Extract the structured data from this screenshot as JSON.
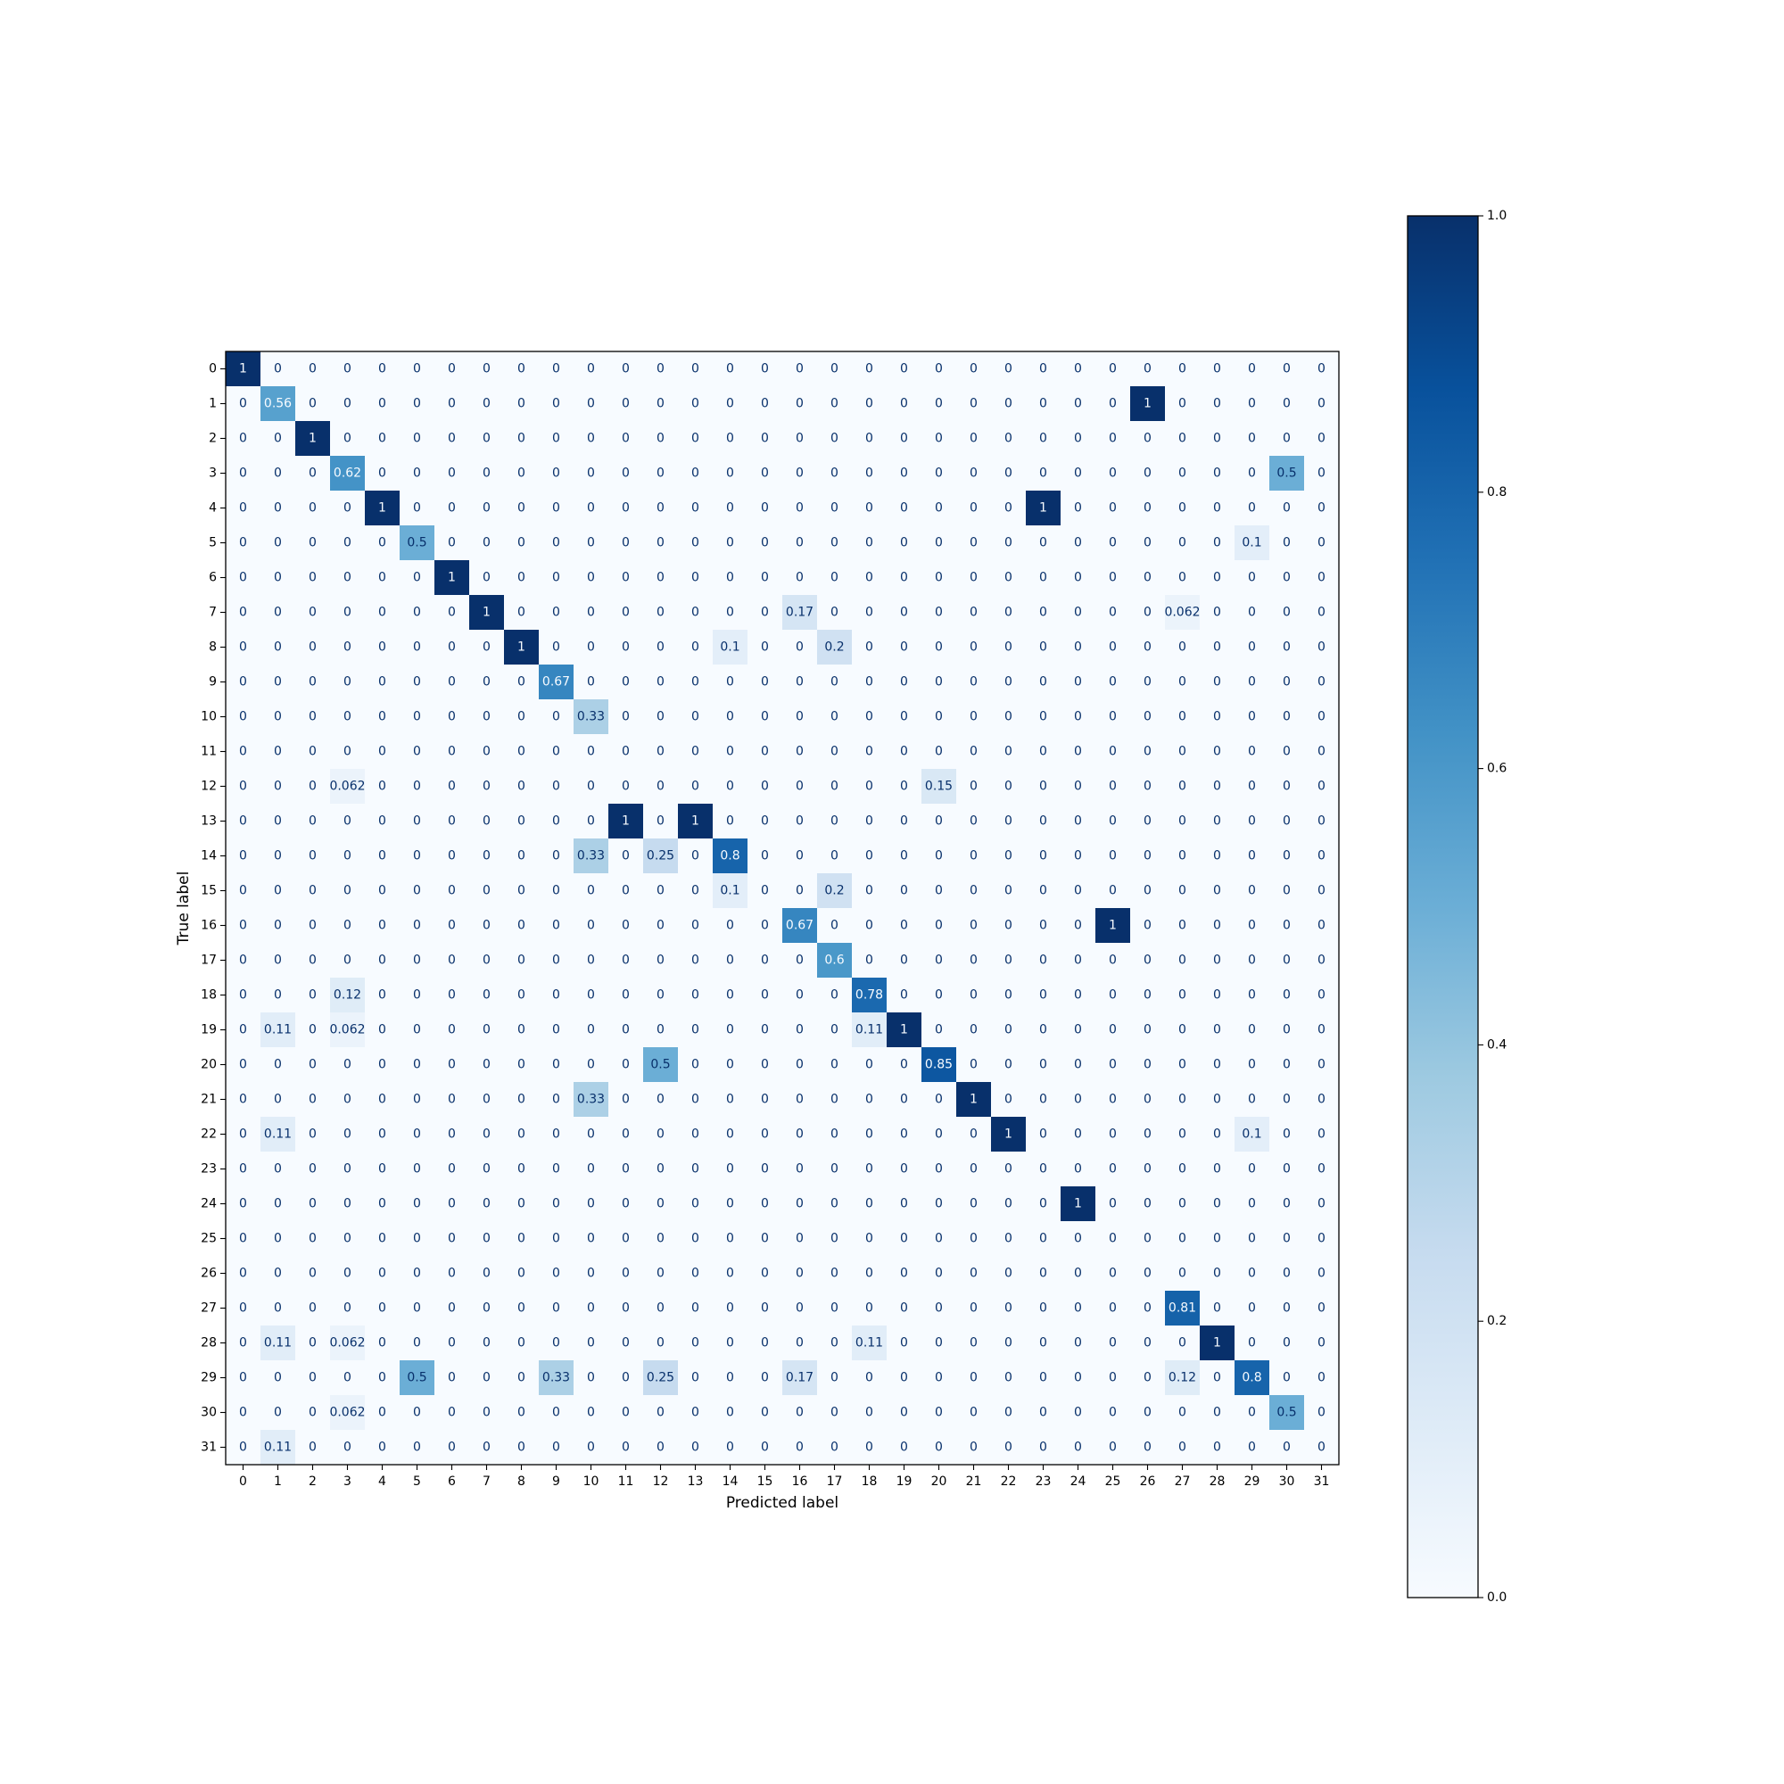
{
  "chart_data": {
    "type": "heatmap",
    "colormap": "Blues",
    "xlabel": "Predicted label",
    "ylabel": "True label",
    "x_categories": [
      "0",
      "1",
      "2",
      "3",
      "4",
      "5",
      "6",
      "7",
      "8",
      "9",
      "10",
      "11",
      "12",
      "13",
      "14",
      "15",
      "16",
      "17",
      "18",
      "19",
      "20",
      "21",
      "22",
      "23",
      "24",
      "25",
      "26",
      "27",
      "28",
      "29",
      "30",
      "31"
    ],
    "y_categories": [
      "0",
      "1",
      "2",
      "3",
      "4",
      "5",
      "6",
      "7",
      "8",
      "9",
      "10",
      "11",
      "12",
      "13",
      "14",
      "15",
      "16",
      "17",
      "18",
      "19",
      "20",
      "21",
      "22",
      "23",
      "24",
      "25",
      "26",
      "27",
      "28",
      "29",
      "30",
      "31"
    ],
    "cells": [
      {
        "row": 0,
        "col": 0,
        "value": 1,
        "label": "1"
      },
      {
        "row": 1,
        "col": 1,
        "value": 0.56,
        "label": "0.56"
      },
      {
        "row": 1,
        "col": 26,
        "value": 1,
        "label": "1"
      },
      {
        "row": 2,
        "col": 2,
        "value": 1,
        "label": "1"
      },
      {
        "row": 3,
        "col": 3,
        "value": 0.62,
        "label": "0.62"
      },
      {
        "row": 3,
        "col": 30,
        "value": 0.5,
        "label": "0.5"
      },
      {
        "row": 4,
        "col": 4,
        "value": 1,
        "label": "1"
      },
      {
        "row": 4,
        "col": 23,
        "value": 1,
        "label": "1"
      },
      {
        "row": 5,
        "col": 5,
        "value": 0.5,
        "label": "0.5"
      },
      {
        "row": 5,
        "col": 29,
        "value": 0.1,
        "label": "0.1"
      },
      {
        "row": 6,
        "col": 6,
        "value": 1,
        "label": "1"
      },
      {
        "row": 7,
        "col": 7,
        "value": 1,
        "label": "1"
      },
      {
        "row": 7,
        "col": 16,
        "value": 0.17,
        "label": "0.17"
      },
      {
        "row": 7,
        "col": 27,
        "value": 0.062,
        "label": "0.062"
      },
      {
        "row": 8,
        "col": 8,
        "value": 1,
        "label": "1"
      },
      {
        "row": 8,
        "col": 14,
        "value": 0.1,
        "label": "0.1"
      },
      {
        "row": 8,
        "col": 17,
        "value": 0.2,
        "label": "0.2"
      },
      {
        "row": 9,
        "col": 9,
        "value": 0.67,
        "label": "0.67"
      },
      {
        "row": 10,
        "col": 10,
        "value": 0.33,
        "label": "0.33"
      },
      {
        "row": 12,
        "col": 3,
        "value": 0.062,
        "label": "0.062"
      },
      {
        "row": 12,
        "col": 20,
        "value": 0.15,
        "label": "0.15"
      },
      {
        "row": 13,
        "col": 11,
        "value": 1,
        "label": "1"
      },
      {
        "row": 13,
        "col": 13,
        "value": 1,
        "label": "1"
      },
      {
        "row": 14,
        "col": 10,
        "value": 0.33,
        "label": "0.33"
      },
      {
        "row": 14,
        "col": 12,
        "value": 0.25,
        "label": "0.25"
      },
      {
        "row": 14,
        "col": 14,
        "value": 0.8,
        "label": "0.8"
      },
      {
        "row": 15,
        "col": 14,
        "value": 0.1,
        "label": "0.1"
      },
      {
        "row": 15,
        "col": 17,
        "value": 0.2,
        "label": "0.2"
      },
      {
        "row": 16,
        "col": 16,
        "value": 0.67,
        "label": "0.67"
      },
      {
        "row": 16,
        "col": 25,
        "value": 1,
        "label": "1"
      },
      {
        "row": 17,
        "col": 17,
        "value": 0.6,
        "label": "0.6"
      },
      {
        "row": 18,
        "col": 3,
        "value": 0.12,
        "label": "0.12"
      },
      {
        "row": 18,
        "col": 18,
        "value": 0.78,
        "label": "0.78"
      },
      {
        "row": 19,
        "col": 1,
        "value": 0.11,
        "label": "0.11"
      },
      {
        "row": 19,
        "col": 3,
        "value": 0.062,
        "label": "0.062"
      },
      {
        "row": 19,
        "col": 18,
        "value": 0.11,
        "label": "0.11"
      },
      {
        "row": 19,
        "col": 19,
        "value": 1,
        "label": "1"
      },
      {
        "row": 20,
        "col": 12,
        "value": 0.5,
        "label": "0.5"
      },
      {
        "row": 20,
        "col": 20,
        "value": 0.85,
        "label": "0.85"
      },
      {
        "row": 21,
        "col": 10,
        "value": 0.33,
        "label": "0.33"
      },
      {
        "row": 21,
        "col": 21,
        "value": 1,
        "label": "1"
      },
      {
        "row": 22,
        "col": 1,
        "value": 0.11,
        "label": "0.11"
      },
      {
        "row": 22,
        "col": 22,
        "value": 1,
        "label": "1"
      },
      {
        "row": 22,
        "col": 29,
        "value": 0.1,
        "label": "0.1"
      },
      {
        "row": 24,
        "col": 24,
        "value": 1,
        "label": "1"
      },
      {
        "row": 27,
        "col": 27,
        "value": 0.81,
        "label": "0.81"
      },
      {
        "row": 28,
        "col": 1,
        "value": 0.11,
        "label": "0.11"
      },
      {
        "row": 28,
        "col": 3,
        "value": 0.062,
        "label": "0.062"
      },
      {
        "row": 28,
        "col": 18,
        "value": 0.11,
        "label": "0.11"
      },
      {
        "row": 28,
        "col": 28,
        "value": 1,
        "label": "1"
      },
      {
        "row": 29,
        "col": 5,
        "value": 0.5,
        "label": "0.5"
      },
      {
        "row": 29,
        "col": 9,
        "value": 0.33,
        "label": "0.33"
      },
      {
        "row": 29,
        "col": 12,
        "value": 0.25,
        "label": "0.25"
      },
      {
        "row": 29,
        "col": 16,
        "value": 0.17,
        "label": "0.17"
      },
      {
        "row": 29,
        "col": 27,
        "value": 0.12,
        "label": "0.12"
      },
      {
        "row": 29,
        "col": 29,
        "value": 0.8,
        "label": "0.8"
      },
      {
        "row": 30,
        "col": 3,
        "value": 0.062,
        "label": "0.062"
      },
      {
        "row": 30,
        "col": 30,
        "value": 0.5,
        "label": "0.5"
      },
      {
        "row": 31,
        "col": 1,
        "value": 0.11,
        "label": "0.11"
      }
    ],
    "default_value": 0,
    "default_label": "0",
    "colorbar": {
      "range": [
        0.0,
        1.0
      ],
      "ticks": [
        "0.0",
        "0.2",
        "0.4",
        "0.6",
        "0.8",
        "1.0"
      ],
      "tick_values": [
        0.0,
        0.2,
        0.4,
        0.6,
        0.8,
        1.0
      ]
    },
    "grid": false
  }
}
